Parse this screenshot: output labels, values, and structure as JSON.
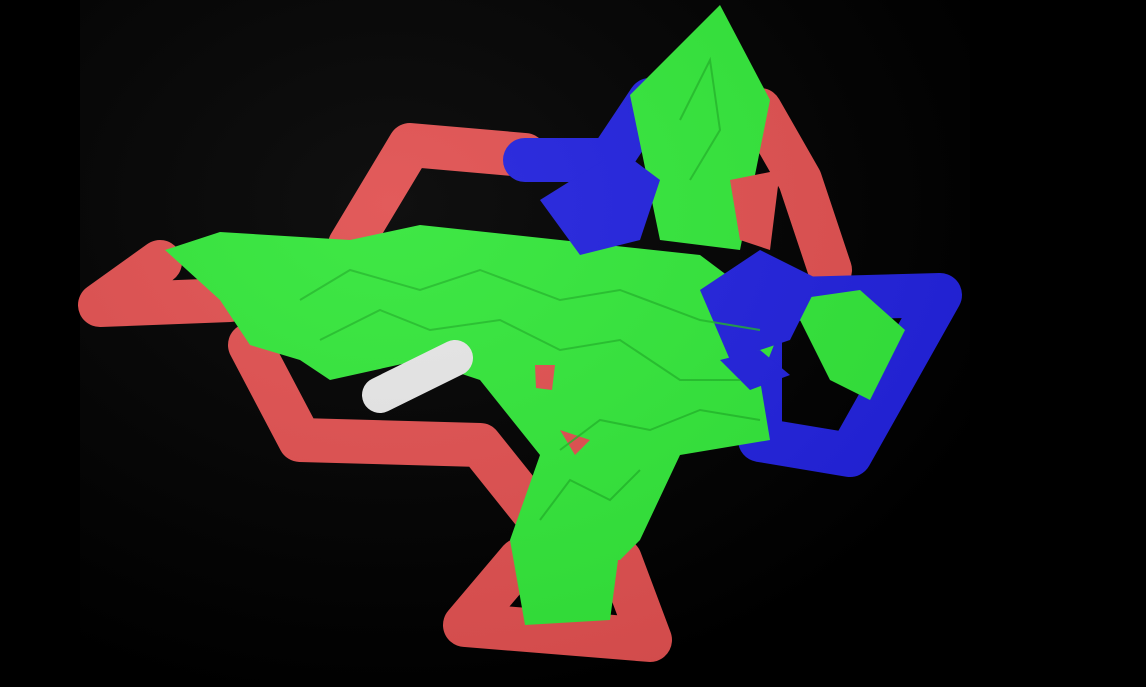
{
  "scene": {
    "description_visible_text": "",
    "background": "#000000",
    "colors": {
      "red": "#e05050",
      "green": "#33e63a",
      "blue": "#2222dd",
      "white": "#e6e6e6"
    },
    "legend": []
  }
}
